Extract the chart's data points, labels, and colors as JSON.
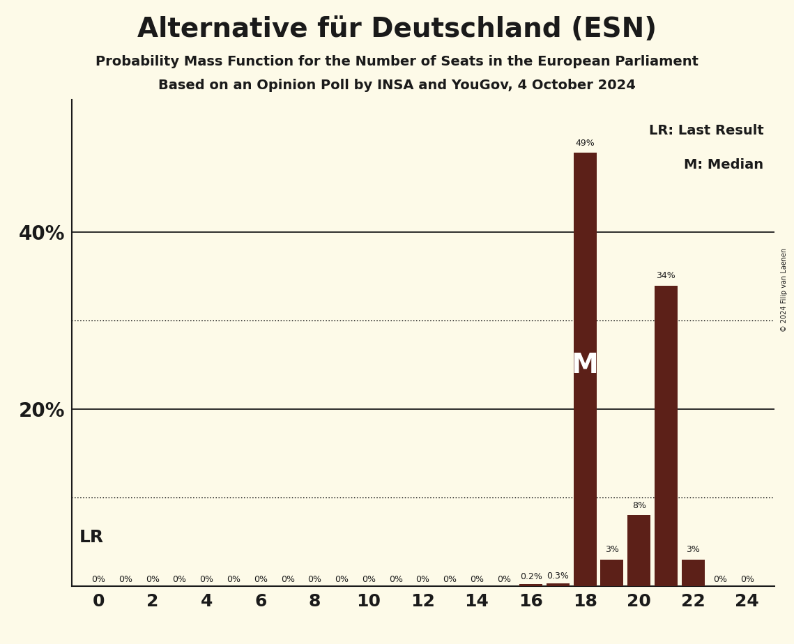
{
  "title": "Alternative für Deutschland (ESN)",
  "subtitle1": "Probability Mass Function for the Number of Seats in the European Parliament",
  "subtitle2": "Based on an Opinion Poll by INSA and YouGov, 4 October 2024",
  "copyright": "© 2024 Filip van Laenen",
  "background_color": "#FDFAE8",
  "bar_color": "#5C2018",
  "seats": [
    0,
    1,
    2,
    3,
    4,
    5,
    6,
    7,
    8,
    9,
    10,
    11,
    12,
    13,
    14,
    15,
    16,
    17,
    18,
    19,
    20,
    21,
    22,
    23,
    24
  ],
  "probabilities": [
    0,
    0,
    0,
    0,
    0,
    0,
    0,
    0,
    0,
    0,
    0,
    0,
    0,
    0,
    0,
    0,
    0.2,
    0.3,
    49,
    3,
    8,
    34,
    3,
    0,
    0
  ],
  "labels": [
    "0%",
    "0%",
    "0%",
    "0%",
    "0%",
    "0%",
    "0%",
    "0%",
    "0%",
    "0%",
    "0%",
    "0%",
    "0%",
    "0%",
    "0%",
    "0%",
    "0.2%",
    "0.3%",
    "49%",
    "3%",
    "8%",
    "34%",
    "3%",
    "0%",
    "0%"
  ],
  "median_seat": 18,
  "last_result_seat": 17,
  "ylim_max": 55,
  "solid_yticks": [
    20,
    40
  ],
  "dotted_yticks": [
    10,
    30
  ],
  "legend_text1": "LR: Last Result",
  "legend_text2": "M: Median",
  "lr_label": "LR",
  "median_label": "M",
  "title_fontsize": 28,
  "subtitle_fontsize": 14,
  "ytick_fontsize": 20,
  "xtick_fontsize": 18,
  "label_fontsize": 9,
  "lr_fontsize": 18,
  "median_fontsize": 28,
  "legend_fontsize": 14
}
